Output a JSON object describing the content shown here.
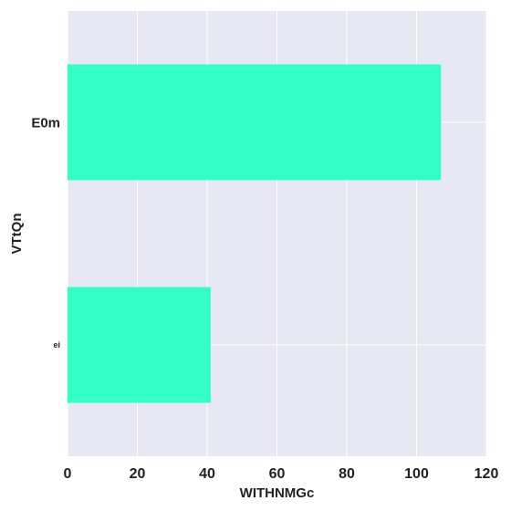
{
  "chart_data": {
    "type": "bar",
    "orientation": "horizontal",
    "categories": [
      "E0m",
      "ei"
    ],
    "values": [
      107,
      41
    ],
    "xlabel": "WITHNMGc",
    "ylabel": "VTtQn",
    "xlim": [
      0,
      120
    ],
    "xticks": [
      0,
      20,
      40,
      60,
      80,
      100,
      120
    ],
    "grid": true,
    "colors": {
      "bar": "#33ffc4",
      "plot_background": "#e8e8f2",
      "grid": "#ffffff"
    }
  }
}
